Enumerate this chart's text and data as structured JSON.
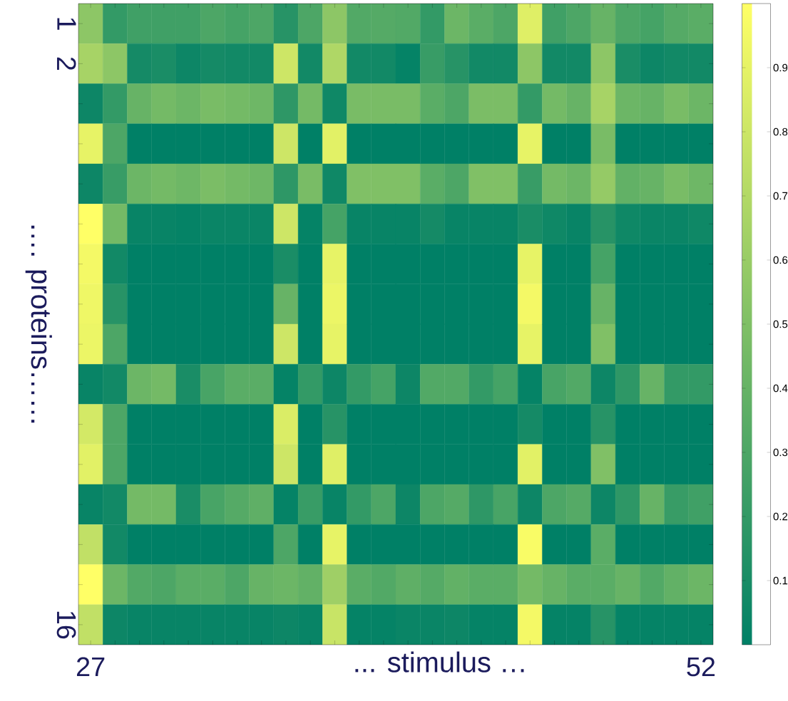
{
  "chart_data": {
    "type": "heatmap",
    "xlabel": "... stimulus …",
    "ylabel": "…. proteins……",
    "categories": [
      "27",
      null,
      null,
      null,
      null,
      null,
      null,
      null,
      null,
      null,
      null,
      null,
      null,
      null,
      null,
      null,
      null,
      null,
      null,
      null,
      null,
      null,
      null,
      null,
      null,
      "52"
    ],
    "y_categories": [
      "1",
      "2",
      null,
      null,
      null,
      null,
      null,
      null,
      null,
      null,
      null,
      null,
      null,
      null,
      null,
      "16"
    ],
    "clim": [
      0,
      1
    ],
    "cticks": [
      0.1,
      0.2,
      0.3,
      0.4,
      0.5,
      0.6,
      0.7,
      0.8,
      0.9
    ],
    "colors": [
      "#008066",
      "#ffff66"
    ],
    "cells": [
      [
        0.55,
        0.2,
        0.25,
        0.25,
        0.25,
        0.3,
        0.27,
        0.3,
        0.15,
        0.3,
        0.55,
        0.32,
        0.33,
        0.32,
        0.2,
        0.42,
        0.35,
        0.3,
        0.87,
        0.25,
        0.3,
        0.4,
        0.3,
        0.27,
        0.33,
        0.35
      ],
      [
        0.65,
        0.55,
        0.08,
        0.1,
        0.05,
        0.08,
        0.07,
        0.07,
        0.8,
        0.07,
        0.68,
        0.07,
        0.07,
        0.02,
        0.22,
        0.15,
        0.07,
        0.07,
        0.55,
        0.07,
        0.07,
        0.55,
        0.1,
        0.05,
        0.07,
        0.07
      ],
      [
        0.05,
        0.2,
        0.4,
        0.45,
        0.42,
        0.47,
        0.45,
        0.43,
        0.18,
        0.45,
        0.06,
        0.47,
        0.47,
        0.47,
        0.35,
        0.3,
        0.48,
        0.48,
        0.2,
        0.45,
        0.4,
        0.65,
        0.42,
        0.4,
        0.47,
        0.42
      ],
      [
        0.9,
        0.3,
        0.0,
        0.0,
        0.0,
        0.0,
        0.0,
        0.0,
        0.8,
        0.0,
        0.88,
        0.0,
        0.0,
        0.0,
        0.0,
        0.0,
        0.0,
        0.0,
        0.9,
        0.0,
        0.0,
        0.47,
        0.0,
        0.0,
        0.0,
        0.0
      ],
      [
        0.05,
        0.22,
        0.42,
        0.45,
        0.43,
        0.48,
        0.45,
        0.43,
        0.18,
        0.47,
        0.06,
        0.5,
        0.5,
        0.5,
        0.35,
        0.3,
        0.5,
        0.5,
        0.22,
        0.45,
        0.42,
        0.58,
        0.38,
        0.4,
        0.47,
        0.43
      ],
      [
        1.0,
        0.45,
        0.03,
        0.03,
        0.02,
        0.04,
        0.04,
        0.04,
        0.8,
        0.02,
        0.27,
        0.03,
        0.03,
        0.03,
        0.08,
        0.03,
        0.03,
        0.03,
        0.1,
        0.06,
        0.03,
        0.15,
        0.06,
        0.04,
        0.04,
        0.06
      ],
      [
        0.95,
        0.07,
        0.0,
        0.0,
        0.0,
        0.0,
        0.0,
        0.0,
        0.1,
        0.0,
        0.9,
        0.0,
        0.0,
        0.0,
        0.0,
        0.0,
        0.0,
        0.0,
        0.9,
        0.0,
        0.0,
        0.27,
        0.0,
        0.0,
        0.0,
        0.0
      ],
      [
        0.93,
        0.15,
        0.0,
        0.0,
        0.0,
        0.0,
        0.0,
        0.0,
        0.4,
        0.0,
        0.92,
        0.0,
        0.0,
        0.0,
        0.0,
        0.0,
        0.0,
        0.0,
        0.95,
        0.0,
        0.0,
        0.4,
        0.0,
        0.0,
        0.0,
        0.0
      ],
      [
        0.92,
        0.3,
        0.0,
        0.0,
        0.0,
        0.0,
        0.0,
        0.0,
        0.8,
        0.0,
        0.9,
        0.0,
        0.0,
        0.0,
        0.0,
        0.0,
        0.0,
        0.0,
        0.9,
        0.0,
        0.0,
        0.5,
        0.0,
        0.0,
        0.0,
        0.0
      ],
      [
        0.03,
        0.07,
        0.42,
        0.45,
        0.1,
        0.28,
        0.35,
        0.35,
        0.02,
        0.2,
        0.05,
        0.2,
        0.27,
        0.05,
        0.32,
        0.32,
        0.2,
        0.27,
        0.02,
        0.28,
        0.32,
        0.05,
        0.18,
        0.4,
        0.2,
        0.2
      ],
      [
        0.82,
        0.3,
        0.0,
        0.0,
        0.0,
        0.0,
        0.0,
        0.0,
        0.85,
        0.0,
        0.15,
        0.0,
        0.0,
        0.0,
        0.0,
        0.0,
        0.0,
        0.0,
        0.08,
        0.0,
        0.0,
        0.15,
        0.0,
        0.0,
        0.0,
        0.0
      ],
      [
        0.88,
        0.3,
        0.0,
        0.0,
        0.0,
        0.0,
        0.0,
        0.0,
        0.8,
        0.0,
        0.87,
        0.0,
        0.0,
        0.0,
        0.0,
        0.0,
        0.0,
        0.0,
        0.88,
        0.0,
        0.0,
        0.5,
        0.0,
        0.0,
        0.0,
        0.0
      ],
      [
        0.03,
        0.07,
        0.45,
        0.45,
        0.1,
        0.28,
        0.33,
        0.37,
        0.02,
        0.22,
        0.03,
        0.2,
        0.3,
        0.05,
        0.3,
        0.33,
        0.18,
        0.28,
        0.05,
        0.3,
        0.33,
        0.05,
        0.18,
        0.4,
        0.22,
        0.25
      ],
      [
        0.75,
        0.07,
        0.0,
        0.0,
        0.0,
        0.0,
        0.0,
        0.0,
        0.3,
        0.0,
        0.9,
        0.0,
        0.0,
        0.0,
        0.0,
        0.0,
        0.0,
        0.0,
        0.97,
        0.0,
        0.0,
        0.35,
        0.0,
        0.0,
        0.0,
        0.0
      ],
      [
        1.0,
        0.42,
        0.32,
        0.3,
        0.35,
        0.35,
        0.3,
        0.4,
        0.42,
        0.38,
        0.62,
        0.35,
        0.32,
        0.37,
        0.33,
        0.38,
        0.35,
        0.35,
        0.45,
        0.4,
        0.35,
        0.35,
        0.4,
        0.32,
        0.38,
        0.42
      ],
      [
        0.75,
        0.05,
        0.03,
        0.03,
        0.03,
        0.03,
        0.03,
        0.03,
        0.05,
        0.03,
        0.78,
        0.02,
        0.02,
        0.04,
        0.04,
        0.05,
        0.02,
        0.02,
        0.95,
        0.02,
        0.02,
        0.15,
        0.02,
        0.02,
        0.02,
        0.02
      ]
    ]
  }
}
